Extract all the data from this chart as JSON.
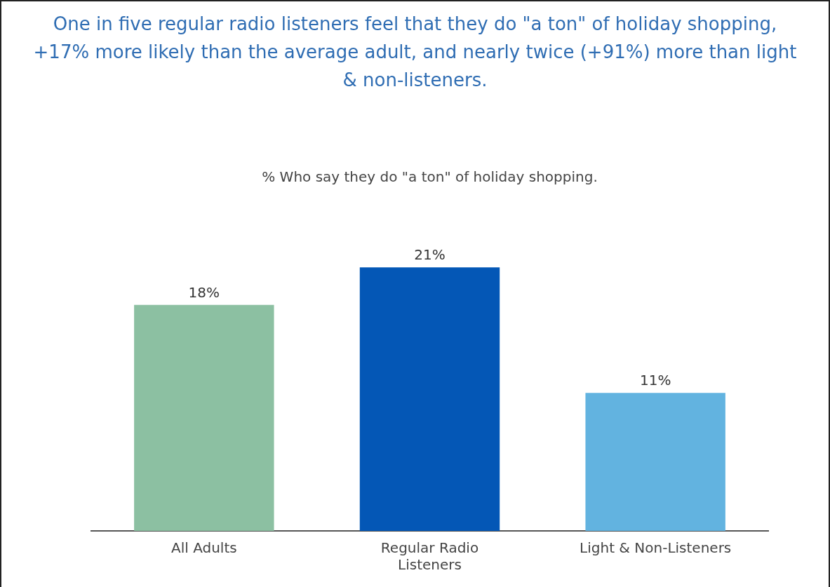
{
  "chart_data": {
    "type": "bar",
    "title": "One in five regular radio listeners feel that they do \"a ton\" of holiday shopping, +17% more likely than the average adult, and nearly twice (+91%) more than light & non-listeners.",
    "subtitle": "% Who say they do \"a ton\" of holiday shopping.",
    "categories": [
      "All Adults",
      "Regular Radio Listeners",
      "Light & Non-Listeners"
    ],
    "values": [
      18,
      21,
      11
    ],
    "value_labels": [
      "18%",
      "21%",
      "11%"
    ],
    "colors": [
      "#8cc0a2",
      "#0457b6",
      "#62b3e0"
    ],
    "grid": false,
    "legend": false
  }
}
